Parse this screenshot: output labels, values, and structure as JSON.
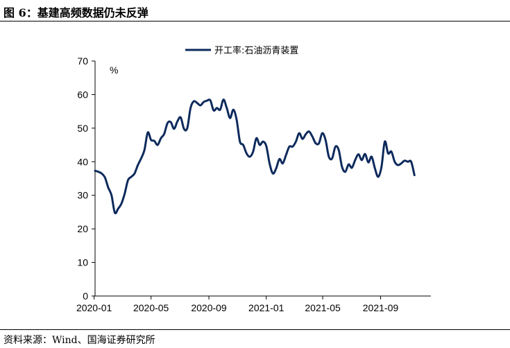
{
  "figure": {
    "title": "图 6：基建高频数据仍未反弹",
    "source": "资料来源：Wind、国海证券研究所"
  },
  "chart_data": {
    "type": "line",
    "title": "",
    "xlabel": "",
    "ylabel": "%",
    "ylim": [
      0,
      70
    ],
    "yticks": [
      0,
      10,
      20,
      30,
      40,
      50,
      60,
      70
    ],
    "xticks": [
      "2020-01",
      "2020-05",
      "2020-09",
      "2021-01",
      "2021-05",
      "2021-09"
    ],
    "xlim": [
      "2020-01-03",
      "2021-12-17"
    ],
    "legend_position": "top-center",
    "grid": false,
    "series": [
      {
        "name": "开工率:石油沥青装置",
        "color": "#0d2a5c",
        "points": [
          [
            "2020-01-03",
            37.3
          ],
          [
            "2020-01-10",
            37.0
          ],
          [
            "2020-01-17",
            36.5
          ],
          [
            "2020-01-24",
            35.3
          ],
          [
            "2020-01-31",
            32.3
          ],
          [
            "2020-02-07",
            30.0
          ],
          [
            "2020-02-14",
            24.8
          ],
          [
            "2020-02-21",
            26.0
          ],
          [
            "2020-02-28",
            27.5
          ],
          [
            "2020-03-06",
            30.5
          ],
          [
            "2020-03-13",
            34.5
          ],
          [
            "2020-03-20",
            35.5
          ],
          [
            "2020-03-27",
            36.5
          ],
          [
            "2020-04-03",
            39.0
          ],
          [
            "2020-04-10",
            41.0
          ],
          [
            "2020-04-17",
            43.5
          ],
          [
            "2020-04-24",
            48.7
          ],
          [
            "2020-05-01",
            46.5
          ],
          [
            "2020-05-08",
            46.2
          ],
          [
            "2020-05-15",
            45.0
          ],
          [
            "2020-05-22",
            47.0
          ],
          [
            "2020-05-29",
            48.3
          ],
          [
            "2020-06-05",
            51.5
          ],
          [
            "2020-06-12",
            51.8
          ],
          [
            "2020-06-19",
            49.8
          ],
          [
            "2020-06-26",
            52.0
          ],
          [
            "2020-07-03",
            53.2
          ],
          [
            "2020-07-10",
            49.8
          ],
          [
            "2020-07-17",
            50.0
          ],
          [
            "2020-07-24",
            56.0
          ],
          [
            "2020-07-31",
            58.0
          ],
          [
            "2020-08-07",
            57.5
          ],
          [
            "2020-08-14",
            56.8
          ],
          [
            "2020-08-21",
            57.8
          ],
          [
            "2020-08-28",
            58.2
          ],
          [
            "2020-09-04",
            58.3
          ],
          [
            "2020-09-11",
            55.3
          ],
          [
            "2020-09-18",
            56.0
          ],
          [
            "2020-09-25",
            55.5
          ],
          [
            "2020-10-02",
            58.5
          ],
          [
            "2020-10-09",
            56.0
          ],
          [
            "2020-10-16",
            53.0
          ],
          [
            "2020-10-23",
            55.5
          ],
          [
            "2020-10-30",
            52.5
          ],
          [
            "2020-11-06",
            46.0
          ],
          [
            "2020-11-13",
            45.0
          ],
          [
            "2020-11-20",
            42.5
          ],
          [
            "2020-11-27",
            41.5
          ],
          [
            "2020-12-04",
            43.0
          ],
          [
            "2020-12-11",
            47.0
          ],
          [
            "2020-12-18",
            45.0
          ],
          [
            "2020-12-25",
            46.0
          ],
          [
            "2021-01-01",
            44.7
          ],
          [
            "2021-01-08",
            39.5
          ],
          [
            "2021-01-15",
            36.5
          ],
          [
            "2021-01-22",
            38.0
          ],
          [
            "2021-01-29",
            40.8
          ],
          [
            "2021-02-05",
            39.5
          ],
          [
            "2021-02-12",
            42.0
          ],
          [
            "2021-02-19",
            44.5
          ],
          [
            "2021-02-26",
            44.5
          ],
          [
            "2021-03-05",
            46.0
          ],
          [
            "2021-03-12",
            48.5
          ],
          [
            "2021-03-19",
            46.8
          ],
          [
            "2021-03-26",
            48.2
          ],
          [
            "2021-04-02",
            49.0
          ],
          [
            "2021-04-09",
            47.5
          ],
          [
            "2021-04-16",
            45.5
          ],
          [
            "2021-04-23",
            45.5
          ],
          [
            "2021-04-30",
            48.5
          ],
          [
            "2021-05-07",
            46.5
          ],
          [
            "2021-05-14",
            41.5
          ],
          [
            "2021-05-21",
            41.0
          ],
          [
            "2021-05-28",
            44.5
          ],
          [
            "2021-06-04",
            43.5
          ],
          [
            "2021-06-11",
            38.5
          ],
          [
            "2021-06-18",
            37.0
          ],
          [
            "2021-06-25",
            39.2
          ],
          [
            "2021-07-02",
            38.2
          ],
          [
            "2021-07-09",
            40.5
          ],
          [
            "2021-07-16",
            42.2
          ],
          [
            "2021-07-23",
            40.5
          ],
          [
            "2021-07-30",
            42.3
          ],
          [
            "2021-08-06",
            39.8
          ],
          [
            "2021-08-13",
            41.5
          ],
          [
            "2021-08-20",
            38.0
          ],
          [
            "2021-08-27",
            35.5
          ],
          [
            "2021-09-03",
            38.5
          ],
          [
            "2021-09-10",
            46.0
          ],
          [
            "2021-09-17",
            42.5
          ],
          [
            "2021-09-24",
            43.0
          ],
          [
            "2021-10-01",
            40.0
          ],
          [
            "2021-10-08",
            39.0
          ],
          [
            "2021-10-15",
            39.5
          ],
          [
            "2021-10-22",
            40.3
          ],
          [
            "2021-10-29",
            40.0
          ],
          [
            "2021-11-05",
            40.0
          ],
          [
            "2021-11-12",
            36.0
          ]
        ]
      }
    ]
  }
}
